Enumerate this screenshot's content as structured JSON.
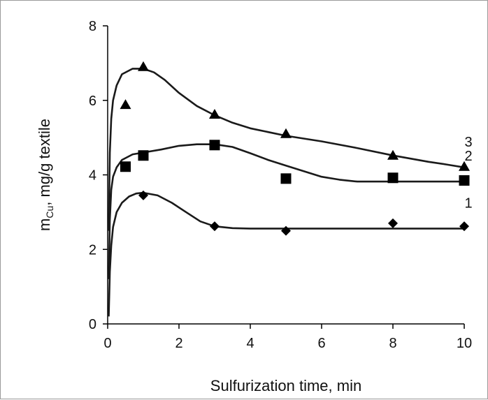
{
  "chart_data": {
    "type": "scatter",
    "title": "",
    "xlabel": "Sulfurization time, min",
    "ylabel_main": "m",
    "ylabel_sub": "Cu",
    "ylabel_rest": ", mg/g textile",
    "xlim": [
      0,
      10
    ],
    "ylim": [
      0,
      8
    ],
    "x_ticks": [
      0,
      2,
      4,
      6,
      8,
      10
    ],
    "y_ticks": [
      0,
      2,
      4,
      6,
      8
    ],
    "grid": false,
    "colors": {
      "marks": "#000000",
      "curves": "#1a1a1a"
    },
    "series": [
      {
        "name": "1",
        "marker": "diamond",
        "points": [
          [
            1,
            3.45
          ],
          [
            3,
            2.62
          ],
          [
            5,
            2.5
          ],
          [
            8,
            2.7
          ],
          [
            10,
            2.62
          ]
        ],
        "fit_curve": [
          [
            0.03,
            0.2
          ],
          [
            0.06,
            1.4
          ],
          [
            0.1,
            2.1
          ],
          [
            0.15,
            2.6
          ],
          [
            0.25,
            3.0
          ],
          [
            0.4,
            3.25
          ],
          [
            0.6,
            3.42
          ],
          [
            0.8,
            3.5
          ],
          [
            1.0,
            3.52
          ],
          [
            1.4,
            3.45
          ],
          [
            1.8,
            3.25
          ],
          [
            2.2,
            3.0
          ],
          [
            2.6,
            2.75
          ],
          [
            3.0,
            2.62
          ],
          [
            3.5,
            2.57
          ],
          [
            4.0,
            2.56
          ],
          [
            6.0,
            2.56
          ],
          [
            8.0,
            2.56
          ],
          [
            10.0,
            2.56
          ]
        ]
      },
      {
        "name": "2",
        "marker": "square",
        "points": [
          [
            0.5,
            4.22
          ],
          [
            1,
            4.52
          ],
          [
            3,
            4.8
          ],
          [
            5,
            3.9
          ],
          [
            8,
            3.92
          ],
          [
            10,
            3.85
          ]
        ],
        "fit_curve": [
          [
            0.03,
            1.2
          ],
          [
            0.06,
            2.8
          ],
          [
            0.1,
            3.6
          ],
          [
            0.15,
            3.95
          ],
          [
            0.25,
            4.2
          ],
          [
            0.4,
            4.4
          ],
          [
            0.7,
            4.55
          ],
          [
            1.0,
            4.6
          ],
          [
            1.5,
            4.68
          ],
          [
            2.0,
            4.78
          ],
          [
            2.5,
            4.82
          ],
          [
            3.0,
            4.82
          ],
          [
            3.5,
            4.75
          ],
          [
            4.0,
            4.58
          ],
          [
            4.5,
            4.4
          ],
          [
            5.0,
            4.25
          ],
          [
            5.5,
            4.1
          ],
          [
            6.0,
            3.95
          ],
          [
            6.5,
            3.87
          ],
          [
            7.0,
            3.82
          ],
          [
            8.0,
            3.82
          ],
          [
            9.0,
            3.82
          ],
          [
            10.0,
            3.82
          ]
        ]
      },
      {
        "name": "3",
        "marker": "triangle",
        "points": [
          [
            0.5,
            5.88
          ],
          [
            1,
            6.9
          ],
          [
            3,
            5.62
          ],
          [
            5,
            5.1
          ],
          [
            8,
            4.52
          ],
          [
            10,
            4.22
          ]
        ],
        "fit_curve": [
          [
            0.03,
            2.5
          ],
          [
            0.06,
            4.6
          ],
          [
            0.1,
            5.5
          ],
          [
            0.15,
            6.0
          ],
          [
            0.25,
            6.4
          ],
          [
            0.4,
            6.7
          ],
          [
            0.7,
            6.85
          ],
          [
            1.0,
            6.85
          ],
          [
            1.3,
            6.75
          ],
          [
            1.6,
            6.55
          ],
          [
            2.0,
            6.2
          ],
          [
            2.5,
            5.85
          ],
          [
            3.0,
            5.6
          ],
          [
            3.5,
            5.4
          ],
          [
            4.0,
            5.25
          ],
          [
            5.0,
            5.05
          ],
          [
            6.0,
            4.9
          ],
          [
            7.0,
            4.72
          ],
          [
            8.0,
            4.52
          ],
          [
            9.0,
            4.35
          ],
          [
            9.5,
            4.28
          ],
          [
            10.0,
            4.2
          ]
        ]
      }
    ]
  }
}
